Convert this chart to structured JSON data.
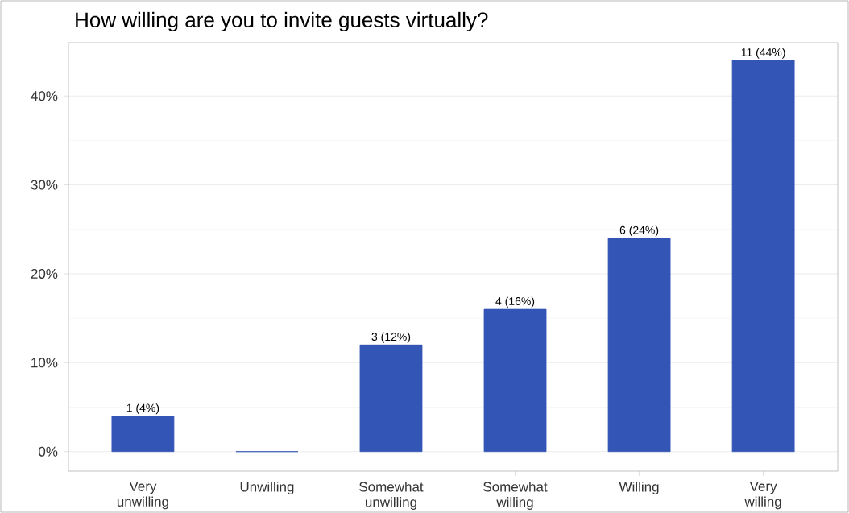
{
  "chart_data": {
    "type": "bar",
    "title": "How willing are you to invite guests virtually?",
    "categories": [
      "Very unwilling",
      "Unwilling",
      "Somewhat unwilling",
      "Somewhat willing",
      "Willing",
      "Very willing"
    ],
    "values": [
      4,
      0,
      12,
      16,
      24,
      44
    ],
    "value_labels": [
      "1 (4%)",
      null,
      "3 (12%)",
      "4 (16%)",
      "6 (24%)",
      "11 (44%)"
    ],
    "color": "#3355b5",
    "ylim": [
      -2.2,
      46
    ],
    "yticks": [
      {
        "value": 0,
        "label": "0%"
      },
      {
        "value": 10,
        "label": "10%"
      },
      {
        "value": 20,
        "label": "20%"
      },
      {
        "value": 30,
        "label": "30%"
      },
      {
        "value": 40,
        "label": "40%"
      }
    ],
    "grid": "y"
  }
}
